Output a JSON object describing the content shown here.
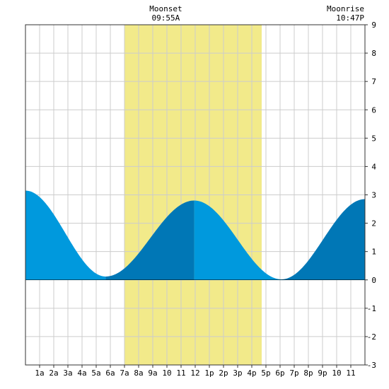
{
  "chart_data": {
    "type": "area",
    "title": "",
    "xlabel": "",
    "ylabel": "",
    "x_range": [
      0,
      24
    ],
    "ylim": [
      -3,
      9
    ],
    "y_ticks": [
      -3,
      -2,
      -1,
      0,
      1,
      2,
      3,
      4,
      5,
      6,
      7,
      8,
      9
    ],
    "x_ticks": [
      1,
      2,
      3,
      4,
      5,
      6,
      7,
      8,
      9,
      10,
      11,
      12,
      13,
      14,
      15,
      16,
      17,
      18,
      19,
      20,
      21,
      22,
      23
    ],
    "x_tick_labels": [
      "1a",
      "2a",
      "3a",
      "4a",
      "5a",
      "6a",
      "7a",
      "8a",
      "9a",
      "10",
      "11",
      "12",
      "1p",
      "2p",
      "3p",
      "4p",
      "5p",
      "6p",
      "7p",
      "8p",
      "9p",
      "10",
      "11"
    ],
    "grid": true,
    "daylight_band": {
      "start": 7.0,
      "end": 16.7,
      "color": "#f2ea8a"
    },
    "moon_events": [
      {
        "label": "Moonset",
        "time": "09:55A",
        "hour": 9.92
      },
      {
        "label": "Moonrise",
        "time": "10:47P",
        "hour": 22.78
      }
    ],
    "tide_extremes": [
      {
        "hour": 0.0,
        "height": 3.15
      },
      {
        "hour": 5.67,
        "height": 0.12
      },
      {
        "hour": 11.93,
        "height": 2.8
      },
      {
        "hour": 18.1,
        "height": 0.02
      },
      {
        "hour": 24.0,
        "height": 2.85
      }
    ],
    "colors": {
      "falling": "#0099dd",
      "rising": "#0077b6",
      "grid": "#cccccc",
      "border": "#333333"
    }
  }
}
